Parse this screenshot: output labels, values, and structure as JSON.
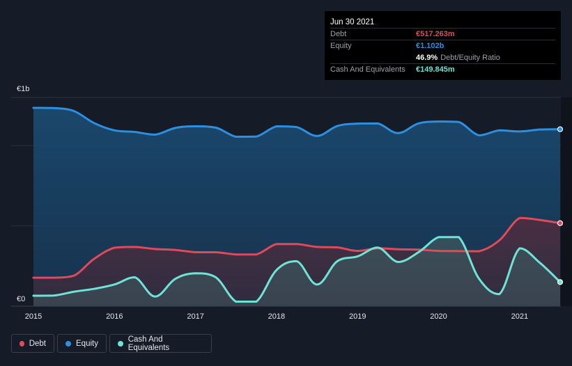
{
  "tooltip": {
    "date": "Jun 30 2021",
    "debt_label": "Debt",
    "debt_value": "€517.263m",
    "equity_label": "Equity",
    "equity_value": "€1.102b",
    "ratio_value": "46.9%",
    "ratio_label": "Debt/Equity Ratio",
    "cash_label": "Cash And Equivalents",
    "cash_value": "€149.845m"
  },
  "legend": {
    "debt": "Debt",
    "equity": "Equity",
    "cash": "Cash And Equivalents"
  },
  "colors": {
    "background": "#151b27",
    "debt": "#e04a5a",
    "equity": "#2d8fe0",
    "cash": "#6fe3d6"
  },
  "chart_data": {
    "type": "area",
    "ylim": [
      0,
      1300
    ],
    "y_unit": "€m",
    "y_tick_labels": [
      {
        "value": 1300,
        "label": "€1b"
      },
      {
        "value": 0,
        "label": "€0"
      }
    ],
    "xlim": [
      2015,
      2021.5
    ],
    "x_ticks": [
      2015,
      2016,
      2017,
      2018,
      2019,
      2020,
      2021
    ],
    "x_tick_labels": [
      "2015",
      "2016",
      "2017",
      "2018",
      "2019",
      "2020",
      "2021"
    ],
    "series": [
      {
        "name": "Equity",
        "key": "equity",
        "x": [
          2015.0,
          2015.25,
          2015.5,
          2015.75,
          2016.0,
          2016.25,
          2016.5,
          2016.75,
          2017.0,
          2017.25,
          2017.5,
          2017.75,
          2018.0,
          2018.25,
          2018.5,
          2018.75,
          2019.0,
          2019.25,
          2019.5,
          2019.75,
          2020.0,
          2020.25,
          2020.5,
          2020.75,
          2021.0,
          2021.25,
          2021.5
        ],
        "values": [
          1235,
          1234,
          1215,
          1140,
          1095,
          1085,
          1068,
          1110,
          1120,
          1112,
          1055,
          1056,
          1120,
          1115,
          1060,
          1122,
          1137,
          1138,
          1078,
          1138,
          1150,
          1147,
          1064,
          1095,
          1088,
          1100,
          1102
        ]
      },
      {
        "name": "Debt",
        "key": "debt",
        "x": [
          2015.0,
          2015.25,
          2015.5,
          2015.75,
          2016.0,
          2016.25,
          2016.5,
          2016.75,
          2017.0,
          2017.25,
          2017.5,
          2017.75,
          2018.0,
          2018.25,
          2018.5,
          2018.75,
          2019.0,
          2019.25,
          2019.5,
          2019.75,
          2020.0,
          2020.25,
          2020.5,
          2020.75,
          2021.0,
          2021.25,
          2021.5
        ],
        "values": [
          177,
          177,
          190,
          295,
          364,
          369,
          356,
          350,
          336,
          336,
          322,
          322,
          387,
          387,
          369,
          366,
          344,
          361,
          354,
          352,
          344,
          343,
          342,
          410,
          549,
          537,
          517
        ]
      },
      {
        "name": "Cash And Equivalents",
        "key": "cash",
        "x": [
          2015.0,
          2015.25,
          2015.5,
          2015.75,
          2016.0,
          2016.25,
          2016.5,
          2016.75,
          2017.0,
          2017.25,
          2017.5,
          2017.75,
          2018.0,
          2018.25,
          2018.5,
          2018.75,
          2019.0,
          2019.25,
          2019.5,
          2019.75,
          2020.0,
          2020.25,
          2020.5,
          2020.75,
          2021.0,
          2021.25,
          2021.5
        ],
        "values": [
          65,
          66,
          90,
          108,
          135,
          180,
          60,
          170,
          205,
          180,
          28,
          28,
          225,
          280,
          135,
          280,
          310,
          365,
          275,
          335,
          430,
          430,
          170,
          75,
          360,
          270,
          150
        ]
      }
    ],
    "highlight_x": 2021.5
  }
}
